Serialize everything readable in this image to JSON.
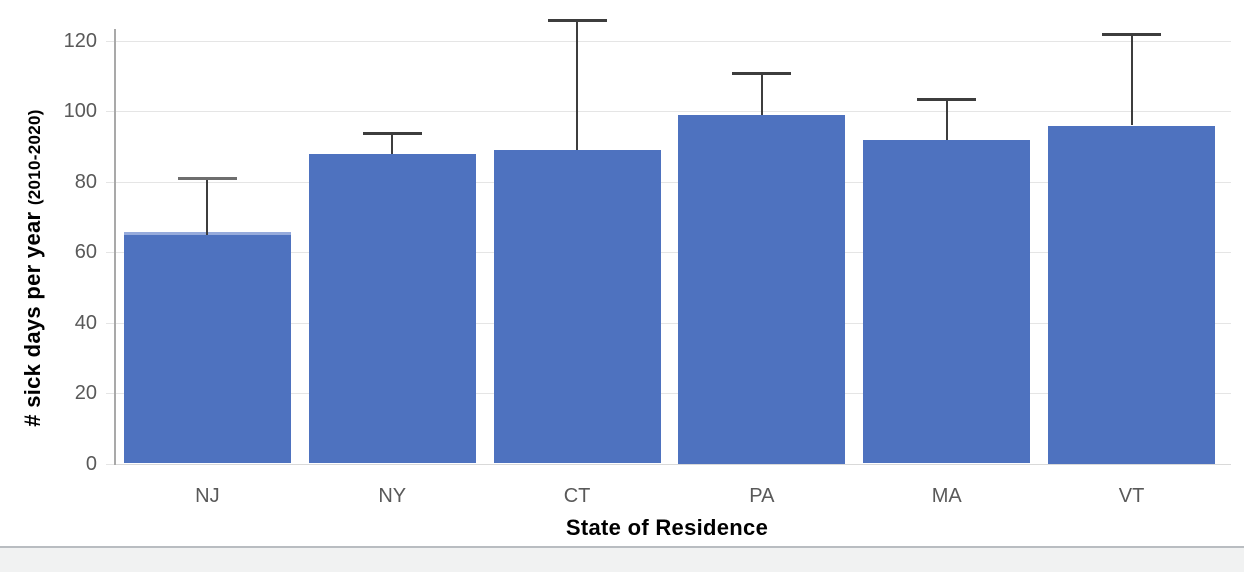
{
  "chart_data": {
    "type": "bar",
    "categories": [
      "NJ",
      "NY",
      "CT",
      "PA",
      "MA",
      "VT"
    ],
    "values": [
      65,
      88,
      89,
      99,
      92,
      96
    ],
    "error_top": [
      81,
      94,
      126,
      111,
      103.5,
      122
    ],
    "error_plus": [
      16,
      6,
      37,
      12,
      11.5,
      26
    ],
    "title": "",
    "xlabel": "State of Residence",
    "ylabel": "# sick days per year",
    "ylabel_suffix": "(2010-2020)",
    "yticks": [
      0,
      20,
      40,
      60,
      80,
      100,
      120
    ],
    "ylim": [
      0,
      126
    ],
    "grid": "horizontal",
    "legend_position": "none",
    "colors": {
      "bar": "#4E72BF",
      "bar_top_highlight": "#96ABDC",
      "bar_top_highlight_category": "NJ",
      "error_bar": "#3D3D3D",
      "error_cap_nj": "#6E6E6E",
      "gridline": "#E5E5E5",
      "baseline": "#D9D9D9",
      "axis_line": "#A9A9A9",
      "tick_label": "#595959",
      "axis_title": "#000000"
    }
  },
  "footer": {
    "divider_color": "#B9BDC1",
    "background": "#F1F2F2"
  }
}
